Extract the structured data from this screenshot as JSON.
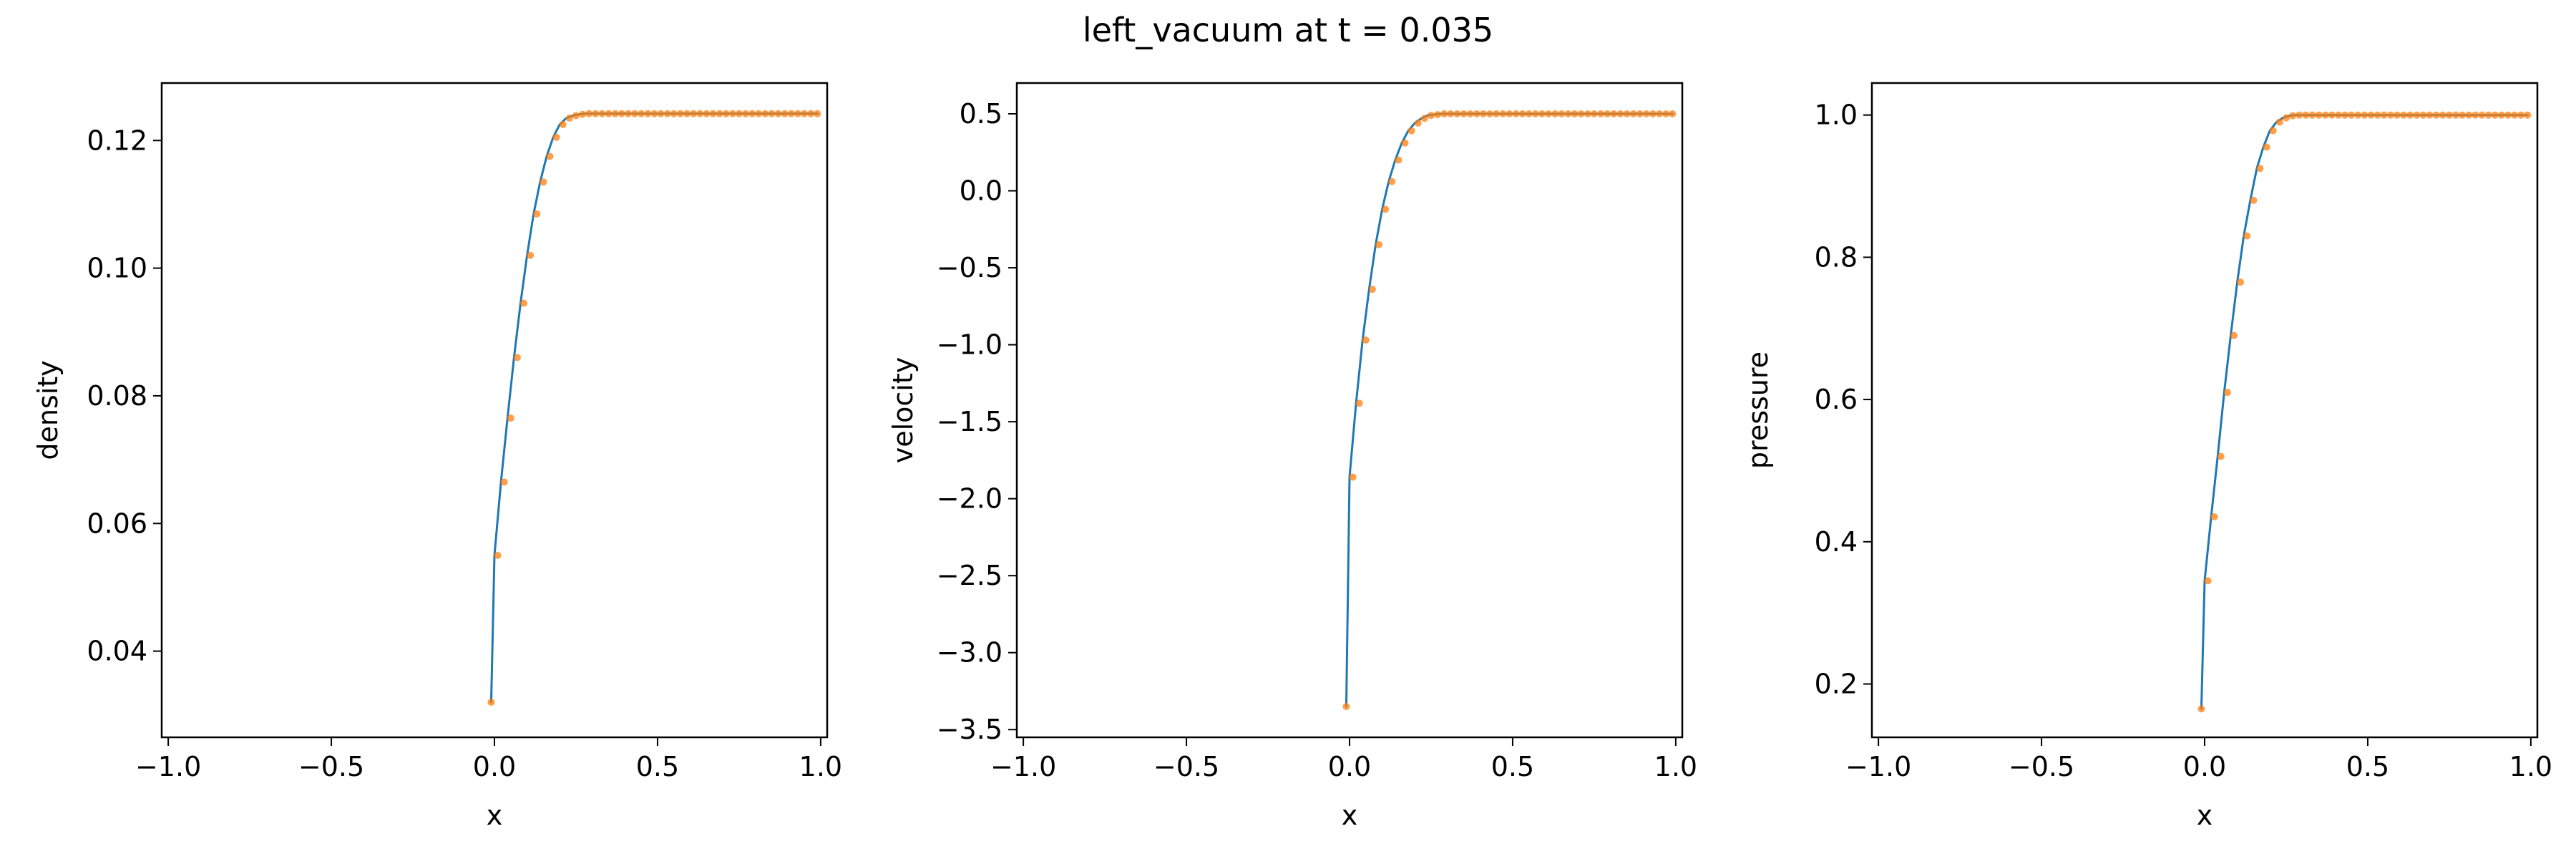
{
  "figure": {
    "title": "left_vacuum at t = 0.035",
    "colors": {
      "line": "#1f77b4",
      "marker": "#ff7f0e",
      "axes": "#000000",
      "background": "#ffffff"
    }
  },
  "chart_data": [
    {
      "type": "line",
      "title": "",
      "xlabel": "x",
      "ylabel": "density",
      "xlim": [
        -1.02,
        1.02
      ],
      "ylim": [
        0.0265,
        0.129
      ],
      "xticks": [
        -1.0,
        -0.5,
        0.0,
        0.5,
        1.0
      ],
      "xtick_labels": [
        "−1.0",
        "−0.5",
        "0.0",
        "0.5",
        "1.0"
      ],
      "yticks": [
        0.04,
        0.06,
        0.08,
        0.1,
        0.12
      ],
      "ytick_labels": [
        "0.04",
        "0.06",
        "0.08",
        "0.10",
        "0.12"
      ],
      "grid": false,
      "legend": false,
      "series": [
        {
          "style": "line",
          "x": [
            -0.01,
            0.0,
            0.02,
            0.04,
            0.06,
            0.08,
            0.1,
            0.12,
            0.14,
            0.16,
            0.18,
            0.2,
            0.22,
            0.24,
            0.26,
            0.28,
            0.3,
            0.32,
            0.35,
            0.4,
            0.6,
            0.8,
            0.99
          ],
          "y": [
            0.032,
            0.055,
            0.0665,
            0.0765,
            0.086,
            0.0945,
            0.102,
            0.1085,
            0.1135,
            0.1175,
            0.1205,
            0.1225,
            0.1235,
            0.1239,
            0.1241,
            0.1242,
            0.1242,
            0.1242,
            0.1242,
            0.1242,
            0.1242,
            0.1242,
            0.1242
          ]
        },
        {
          "style": "markers",
          "x_start": -0.01,
          "x_step": 0.02,
          "count": 51,
          "y_head": [
            0.032,
            0.055,
            0.0665,
            0.0765,
            0.086,
            0.0945,
            0.102,
            0.1085,
            0.1135,
            0.1175,
            0.1205,
            0.1225,
            0.1235,
            0.1239,
            0.1241
          ],
          "y_tail": 0.1242
        }
      ]
    },
    {
      "type": "line",
      "title": "",
      "xlabel": "x",
      "ylabel": "velocity",
      "xlim": [
        -1.02,
        1.02
      ],
      "ylim": [
        -3.55,
        0.7
      ],
      "xticks": [
        -1.0,
        -0.5,
        0.0,
        0.5,
        1.0
      ],
      "xtick_labels": [
        "−1.0",
        "−0.5",
        "0.0",
        "0.5",
        "1.0"
      ],
      "yticks": [
        -3.5,
        -3.0,
        -2.5,
        -2.0,
        -1.5,
        -1.0,
        -0.5,
        0.0,
        0.5
      ],
      "ytick_labels": [
        "−3.5",
        "−3.0",
        "−2.5",
        "−2.0",
        "−1.5",
        "−1.0",
        "−0.5",
        "0.0",
        "0.5"
      ],
      "grid": false,
      "legend": false,
      "series": [
        {
          "style": "line",
          "x": [
            -0.01,
            0.0,
            0.02,
            0.04,
            0.06,
            0.08,
            0.1,
            0.12,
            0.14,
            0.16,
            0.18,
            0.2,
            0.22,
            0.24,
            0.26,
            0.28,
            0.3,
            0.35,
            0.4,
            0.6,
            0.8,
            0.99
          ],
          "y": [
            -3.35,
            -1.86,
            -1.38,
            -0.97,
            -0.64,
            -0.35,
            -0.12,
            0.06,
            0.2,
            0.31,
            0.39,
            0.44,
            0.47,
            0.49,
            0.495,
            0.5,
            0.5,
            0.5,
            0.5,
            0.5,
            0.5,
            0.5
          ]
        },
        {
          "style": "markers",
          "x_start": -0.01,
          "x_step": 0.02,
          "count": 51,
          "y_head": [
            -3.35,
            -1.86,
            -1.38,
            -0.97,
            -0.64,
            -0.35,
            -0.12,
            0.06,
            0.2,
            0.31,
            0.39,
            0.44,
            0.47,
            0.49,
            0.495
          ],
          "y_tail": 0.5
        }
      ]
    },
    {
      "type": "line",
      "title": "",
      "xlabel": "x",
      "ylabel": "pressure",
      "xlim": [
        -1.02,
        1.02
      ],
      "ylim": [
        0.125,
        1.045
      ],
      "xticks": [
        -1.0,
        -0.5,
        0.0,
        0.5,
        1.0
      ],
      "xtick_labels": [
        "−1.0",
        "−0.5",
        "0.0",
        "0.5",
        "1.0"
      ],
      "yticks": [
        0.2,
        0.4,
        0.6,
        0.8,
        1.0
      ],
      "ytick_labels": [
        "0.2",
        "0.4",
        "0.6",
        "0.8",
        "1.0"
      ],
      "grid": false,
      "legend": false,
      "series": [
        {
          "style": "line",
          "x": [
            -0.01,
            0.0,
            0.02,
            0.04,
            0.06,
            0.08,
            0.1,
            0.12,
            0.14,
            0.16,
            0.18,
            0.2,
            0.22,
            0.24,
            0.26,
            0.28,
            0.3,
            0.35,
            0.4,
            0.6,
            0.8,
            0.99
          ],
          "y": [
            0.165,
            0.345,
            0.435,
            0.52,
            0.61,
            0.69,
            0.765,
            0.83,
            0.88,
            0.925,
            0.955,
            0.978,
            0.99,
            0.996,
            0.999,
            1.0,
            1.0,
            1.0,
            1.0,
            1.0,
            1.0,
            1.0
          ]
        },
        {
          "style": "markers",
          "x_start": -0.01,
          "x_step": 0.02,
          "count": 51,
          "y_head": [
            0.165,
            0.345,
            0.435,
            0.52,
            0.61,
            0.69,
            0.765,
            0.83,
            0.88,
            0.925,
            0.955,
            0.978,
            0.99,
            0.996,
            0.999
          ],
          "y_tail": 1.0
        }
      ]
    }
  ]
}
